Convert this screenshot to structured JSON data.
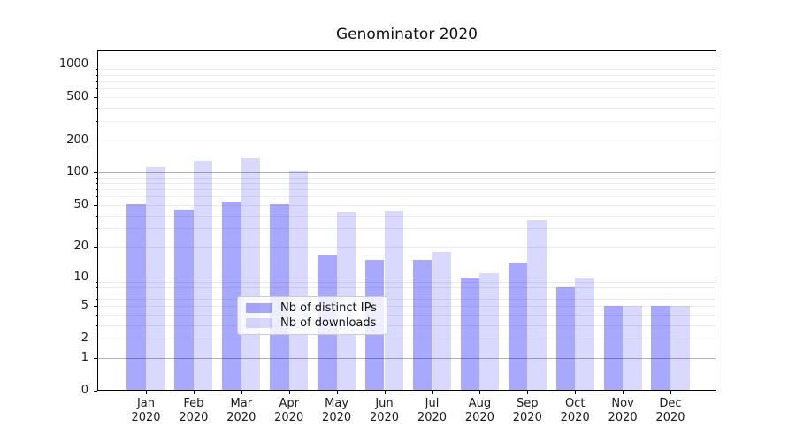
{
  "figure": {
    "title": "Genominator 2020",
    "background": "#ffffff"
  },
  "chart_data": {
    "type": "bar",
    "title": "Genominator 2020",
    "categories": [
      "Jan 2020",
      "Feb 2020",
      "Mar 2020",
      "Apr 2020",
      "May 2020",
      "Jun 2020",
      "Jul 2020",
      "Aug 2020",
      "Sep 2020",
      "Oct 2020",
      "Nov 2020",
      "Dec 2020"
    ],
    "months": [
      "Jan",
      "Feb",
      "Mar",
      "Apr",
      "May",
      "Jun",
      "Jul",
      "Aug",
      "Sep",
      "Oct",
      "Nov",
      "Dec"
    ],
    "year": "2020",
    "series": [
      {
        "name": "Nb of distinct IPs",
        "values": [
          51,
          45,
          54,
          51,
          17,
          15,
          15,
          10,
          14,
          8,
          5,
          5
        ],
        "color": "rgba(0,0,255,0.34)"
      },
      {
        "name": "Nb of downloads",
        "values": [
          113,
          128,
          135,
          104,
          43,
          44,
          18,
          11,
          36,
          10,
          5,
          5
        ],
        "color": "rgba(0,0,255,0.15)"
      }
    ],
    "xlabel": "",
    "ylabel": "",
    "yscale": "log1p",
    "ylim": [
      0,
      1350
    ],
    "yticks_labeled": [
      0,
      1,
      2,
      5,
      10,
      20,
      50,
      100,
      200,
      500,
      1000
    ],
    "grid": true,
    "grid_major_at": [
      1,
      10,
      100,
      1000
    ],
    "legend": {
      "position": "lower center",
      "entries": [
        "Nb of distinct IPs",
        "Nb of downloads"
      ]
    },
    "colors": {
      "grid_major": "#b3b3b3",
      "grid_minor": "#ebebeb",
      "spine": "#000000",
      "text": "#1a1a1a"
    }
  }
}
